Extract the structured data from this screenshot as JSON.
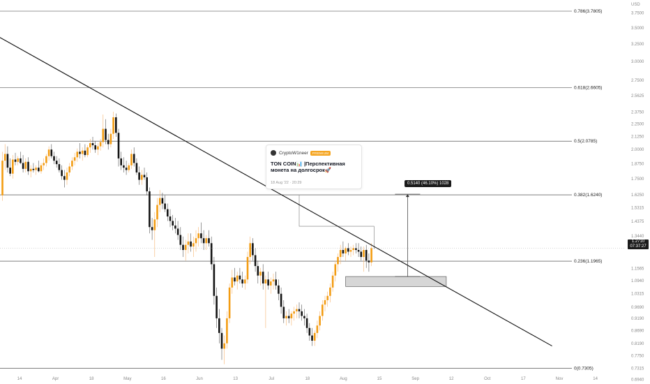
{
  "chart_data": {
    "type": "candlestick",
    "currency": "USD",
    "y_scale": "log",
    "ylim": [
      0.68,
      3.98
    ],
    "price_ticks": [
      "3.7500",
      "3.5000",
      "3.2500",
      "3.0000",
      "2.7500",
      "2.5625",
      "2.3750",
      "2.2500",
      "2.1250",
      "2.0000",
      "1.8750",
      "1.7500",
      "1.6250",
      "1.5315",
      "1.4375",
      "1.3440",
      "1.1565",
      "1.0940",
      "1.0315",
      "0.9690",
      "0.9190",
      "0.8690",
      "0.8190",
      "0.7750",
      "0.7315",
      "0.6940"
    ],
    "date_ticks": [
      "14",
      "Apr",
      "18",
      "May",
      "16",
      "Jun",
      "13",
      "Jul",
      "18",
      "Aug",
      "15",
      "Sep",
      "12",
      "Oct",
      "17",
      "Nov",
      "14"
    ],
    "fib_levels": [
      {
        "label": "0.786(3.7805)",
        "price": 3.7805
      },
      {
        "label": "0.618(2.6605)",
        "price": 2.6605
      },
      {
        "label": "0.5(2.0785)",
        "price": 2.0785
      },
      {
        "label": "0.382(1.6240)",
        "price": 1.624
      },
      {
        "label": "0.236(1.1965)",
        "price": 1.1965
      },
      {
        "label": "0(0.7305)",
        "price": 0.7305
      }
    ],
    "last_price": "1.2710",
    "countdown": "07:37:27",
    "measure_label": "0.5140 (46.10%) 1028",
    "trendline": {
      "start": {
        "bar": -1,
        "price": 3.35
      },
      "end": {
        "bar": 213,
        "price": 0.81
      }
    },
    "support_zone": {
      "bar_start": 133,
      "bar_end": 172,
      "price_low": 1.065,
      "price_high": 1.115
    },
    "measure": {
      "bar": 157,
      "price_low": 1.115,
      "price_high": 1.629
    },
    "callout_box": {
      "bar_start": 115,
      "bar_end": 144,
      "price_low": 1.265,
      "price_high": 1.405
    },
    "candles": [
      [
        1.62,
        1.98,
        1.58,
        1.9
      ],
      [
        1.9,
        2.05,
        1.82,
        1.96
      ],
      [
        1.96,
        2.03,
        1.8,
        1.84
      ],
      [
        1.84,
        1.92,
        1.77,
        1.79
      ],
      [
        1.79,
        1.95,
        1.75,
        1.91
      ],
      [
        1.91,
        1.97,
        1.86,
        1.89
      ],
      [
        1.89,
        1.94,
        1.86,
        1.92
      ],
      [
        1.92,
        1.98,
        1.87,
        1.88
      ],
      [
        1.88,
        1.95,
        1.8,
        1.83
      ],
      [
        1.83,
        1.92,
        1.8,
        1.89
      ],
      [
        1.89,
        1.93,
        1.78,
        1.81
      ],
      [
        1.81,
        1.86,
        1.76,
        1.83
      ],
      [
        1.83,
        1.88,
        1.8,
        1.82
      ],
      [
        1.82,
        1.86,
        1.78,
        1.84
      ],
      [
        1.84,
        1.9,
        1.8,
        1.81
      ],
      [
        1.81,
        1.88,
        1.79,
        1.86
      ],
      [
        1.86,
        1.92,
        1.82,
        1.88
      ],
      [
        1.88,
        1.96,
        1.85,
        1.94
      ],
      [
        1.94,
        2.03,
        1.9,
        2.0
      ],
      [
        2.0,
        2.05,
        1.92,
        1.94
      ],
      [
        1.94,
        1.98,
        1.87,
        1.9
      ],
      [
        1.9,
        1.94,
        1.84,
        1.87
      ],
      [
        1.87,
        1.92,
        1.8,
        1.82
      ],
      [
        1.82,
        1.86,
        1.74,
        1.77
      ],
      [
        1.77,
        1.82,
        1.68,
        1.74
      ],
      [
        1.74,
        1.84,
        1.7,
        1.8
      ],
      [
        1.8,
        1.88,
        1.77,
        1.85
      ],
      [
        1.85,
        1.93,
        1.82,
        1.9
      ],
      [
        1.9,
        1.97,
        1.86,
        1.93
      ],
      [
        1.93,
        2.01,
        1.89,
        1.98
      ],
      [
        1.98,
        2.06,
        1.92,
        1.96
      ],
      [
        1.96,
        2.02,
        1.9,
        1.99
      ],
      [
        1.99,
        2.05,
        1.93,
        1.95
      ],
      [
        1.95,
        2.04,
        1.93,
        2.02
      ],
      [
        2.02,
        2.1,
        1.97,
        2.06
      ],
      [
        2.06,
        2.12,
        2.0,
        2.04
      ],
      [
        2.04,
        2.08,
        1.97,
        2.0
      ],
      [
        2.0,
        2.06,
        1.95,
        2.03
      ],
      [
        2.03,
        2.1,
        1.99,
        2.07
      ],
      [
        2.07,
        2.35,
        2.02,
        2.2
      ],
      [
        2.2,
        2.3,
        2.05,
        2.09
      ],
      [
        2.09,
        2.15,
        2.0,
        2.05
      ],
      [
        2.05,
        2.2,
        2.02,
        2.15
      ],
      [
        2.15,
        2.38,
        2.1,
        2.32
      ],
      [
        2.32,
        2.36,
        2.12,
        2.16
      ],
      [
        2.16,
        2.2,
        1.85,
        1.92
      ],
      [
        1.92,
        1.98,
        1.82,
        1.86
      ],
      [
        1.86,
        1.93,
        1.8,
        1.84
      ],
      [
        1.84,
        1.9,
        1.78,
        1.82
      ],
      [
        1.82,
        1.88,
        1.8,
        1.86
      ],
      [
        1.86,
        2.0,
        1.83,
        1.96
      ],
      [
        1.96,
        2.02,
        1.85,
        1.88
      ],
      [
        1.88,
        1.92,
        1.78,
        1.8
      ],
      [
        1.8,
        1.85,
        1.7,
        1.74
      ],
      [
        1.74,
        1.82,
        1.7,
        1.78
      ],
      [
        1.78,
        1.84,
        1.74,
        1.76
      ],
      [
        1.76,
        1.8,
        1.62,
        1.65
      ],
      [
        1.65,
        1.68,
        1.36,
        1.4
      ],
      [
        1.4,
        1.46,
        1.32,
        1.38
      ],
      [
        1.38,
        1.5,
        1.22,
        1.45
      ],
      [
        1.45,
        1.6,
        1.4,
        1.55
      ],
      [
        1.55,
        1.66,
        1.5,
        1.6
      ],
      [
        1.6,
        1.64,
        1.52,
        1.56
      ],
      [
        1.56,
        1.62,
        1.5,
        1.52
      ],
      [
        1.52,
        1.56,
        1.44,
        1.47
      ],
      [
        1.47,
        1.52,
        1.4,
        1.44
      ],
      [
        1.44,
        1.48,
        1.38,
        1.41
      ],
      [
        1.41,
        1.46,
        1.36,
        1.39
      ],
      [
        1.39,
        1.44,
        1.32,
        1.35
      ],
      [
        1.35,
        1.4,
        1.26,
        1.29
      ],
      [
        1.29,
        1.34,
        1.22,
        1.26
      ],
      [
        1.26,
        1.32,
        1.2,
        1.29
      ],
      [
        1.29,
        1.36,
        1.24,
        1.31
      ],
      [
        1.31,
        1.36,
        1.25,
        1.28
      ],
      [
        1.28,
        1.34,
        1.22,
        1.3
      ],
      [
        1.3,
        1.38,
        1.25,
        1.33
      ],
      [
        1.33,
        1.4,
        1.28,
        1.36
      ],
      [
        1.36,
        1.43,
        1.3,
        1.33
      ],
      [
        1.33,
        1.38,
        1.26,
        1.3
      ],
      [
        1.3,
        1.35,
        1.26,
        1.33
      ],
      [
        1.33,
        1.38,
        1.28,
        1.3
      ],
      [
        1.3,
        1.34,
        1.15,
        1.18
      ],
      [
        1.18,
        1.22,
        0.98,
        1.02
      ],
      [
        1.02,
        1.06,
        0.88,
        0.92
      ],
      [
        0.92,
        0.96,
        0.82,
        0.86
      ],
      [
        0.86,
        0.88,
        0.76,
        0.8
      ],
      [
        0.8,
        0.85,
        0.745,
        0.82
      ],
      [
        0.82,
        0.95,
        0.8,
        0.92
      ],
      [
        0.92,
        1.08,
        0.9,
        1.06
      ],
      [
        1.06,
        1.15,
        1.03,
        1.11
      ],
      [
        1.11,
        1.16,
        1.07,
        1.09
      ],
      [
        1.09,
        1.14,
        1.05,
        1.12
      ],
      [
        1.12,
        1.16,
        1.08,
        1.1
      ],
      [
        1.1,
        1.14,
        1.06,
        1.08
      ],
      [
        1.08,
        1.12,
        1.05,
        1.1
      ],
      [
        1.1,
        1.25,
        1.08,
        1.22
      ],
      [
        1.22,
        1.34,
        1.18,
        1.3
      ],
      [
        1.3,
        1.33,
        1.2,
        1.23
      ],
      [
        1.23,
        1.27,
        1.14,
        1.17
      ],
      [
        1.17,
        1.2,
        1.08,
        1.12
      ],
      [
        1.12,
        1.16,
        1.07,
        1.14
      ],
      [
        1.14,
        1.18,
        1.05,
        1.08
      ],
      [
        1.08,
        1.12,
        0.88,
        1.1
      ],
      [
        1.1,
        1.14,
        1.05,
        1.07
      ],
      [
        1.07,
        1.11,
        1.03,
        1.09
      ],
      [
        1.09,
        1.13,
        1.05,
        1.1
      ],
      [
        1.1,
        1.14,
        1.05,
        1.07
      ],
      [
        1.07,
        1.1,
        1.0,
        1.03
      ],
      [
        1.03,
        1.06,
        0.94,
        0.97
      ],
      [
        0.97,
        1.0,
        0.9,
        0.92
      ],
      [
        0.92,
        0.95,
        0.89,
        0.93
      ],
      [
        0.93,
        0.96,
        0.9,
        0.92
      ],
      [
        0.92,
        0.95,
        0.89,
        0.94
      ],
      [
        0.94,
        0.97,
        0.91,
        0.95
      ],
      [
        0.95,
        0.98,
        0.92,
        0.96
      ],
      [
        0.96,
        0.99,
        0.92,
        0.95
      ],
      [
        0.95,
        0.98,
        0.91,
        0.93
      ],
      [
        0.93,
        0.96,
        0.89,
        0.92
      ],
      [
        0.92,
        0.94,
        0.86,
        0.88
      ],
      [
        0.88,
        0.9,
        0.83,
        0.85
      ],
      [
        0.85,
        0.88,
        0.81,
        0.83
      ],
      [
        0.83,
        0.87,
        0.81,
        0.86
      ],
      [
        0.86,
        0.91,
        0.84,
        0.89
      ],
      [
        0.89,
        0.95,
        0.87,
        0.93
      ],
      [
        0.93,
        1.0,
        0.91,
        0.98
      ],
      [
        0.98,
        1.02,
        0.95,
        1.0
      ],
      [
        1.0,
        1.04,
        0.97,
        1.02
      ],
      [
        1.02,
        1.08,
        0.99,
        1.06
      ],
      [
        1.06,
        1.14,
        1.04,
        1.12
      ],
      [
        1.12,
        1.2,
        1.09,
        1.18
      ],
      [
        1.18,
        1.24,
        1.14,
        1.22
      ],
      [
        1.22,
        1.29,
        1.18,
        1.26
      ],
      [
        1.26,
        1.31,
        1.22,
        1.24
      ],
      [
        1.24,
        1.28,
        1.2,
        1.27
      ],
      [
        1.27,
        1.3,
        1.23,
        1.25
      ],
      [
        1.25,
        1.28,
        1.22,
        1.26
      ],
      [
        1.26,
        1.29,
        1.23,
        1.27
      ],
      [
        1.27,
        1.3,
        1.24,
        1.26
      ],
      [
        1.26,
        1.3,
        1.22,
        1.25
      ],
      [
        1.25,
        1.28,
        1.2,
        1.22
      ],
      [
        1.22,
        1.28,
        1.14,
        1.26
      ],
      [
        1.26,
        1.29,
        1.16,
        1.2
      ],
      [
        1.2,
        1.24,
        1.14,
        1.19
      ],
      [
        1.19,
        1.3,
        1.17,
        1.27
      ]
    ]
  }
}
